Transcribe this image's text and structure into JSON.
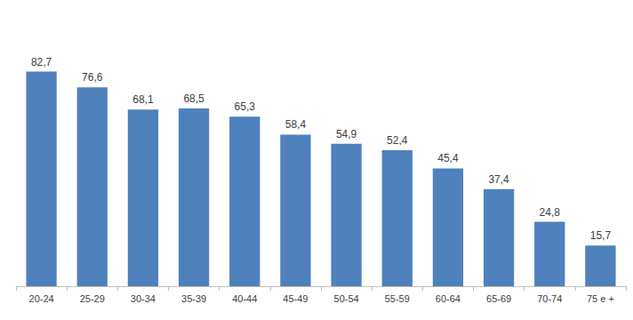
{
  "chart_data": {
    "type": "bar",
    "categories": [
      "20-24",
      "25-29",
      "30-34",
      "35-39",
      "40-44",
      "45-49",
      "50-54",
      "55-59",
      "60-64",
      "65-69",
      "70-74",
      "75 e +"
    ],
    "values": [
      82.7,
      76.6,
      68.1,
      68.5,
      65.3,
      58.4,
      54.9,
      52.4,
      45.4,
      37.4,
      24.8,
      15.7
    ],
    "value_labels": [
      "82,7",
      "76,6",
      "68,1",
      "68,5",
      "65,3",
      "58,4",
      "54,9",
      "52,4",
      "45,4",
      "37,4",
      "24,8",
      "15,7"
    ],
    "color": "#4f81bd",
    "grid": false,
    "data_labels": true,
    "tick_labels": "x"
  }
}
